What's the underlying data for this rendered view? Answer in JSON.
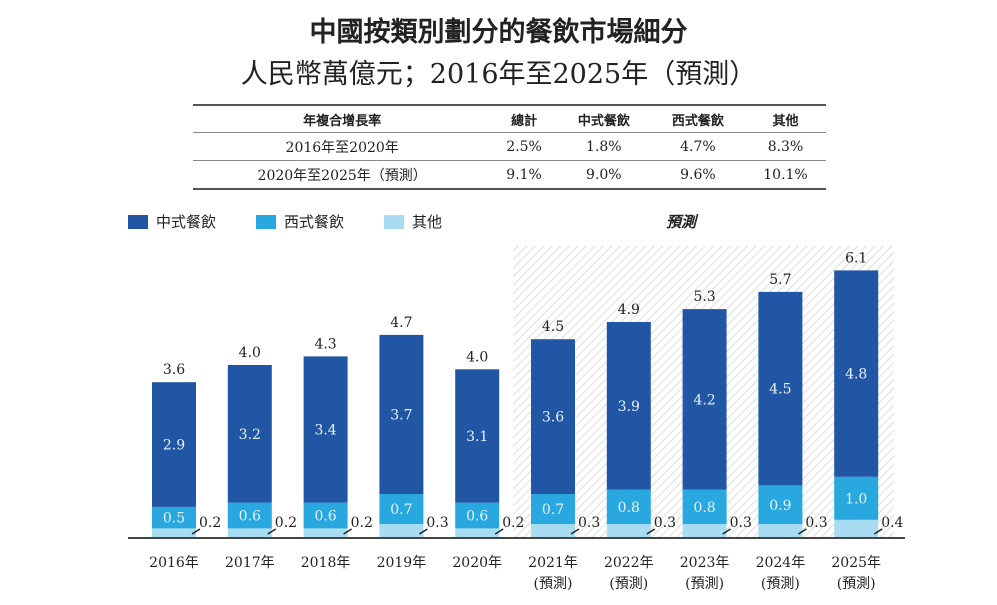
{
  "title": "中國按類別劃分的餐飲市場細分",
  "subtitle": "人民幣萬億元；2016年至2025年（預測）",
  "cagr_table": {
    "headers": [
      "年複合增長率",
      "總計",
      "中式餐飲",
      "西式餐飲",
      "其他"
    ],
    "rows": [
      [
        "2016年至2020年",
        "2.5%",
        "1.8%",
        "4.7%",
        "8.3%"
      ],
      [
        "2020年至2025年（預測）",
        "9.1%",
        "9.0%",
        "9.6%",
        "10.1%"
      ]
    ]
  },
  "legend": {
    "forecast_label": "預測"
  },
  "chart_data": {
    "type": "bar",
    "stacked": true,
    "categories": [
      "2016年",
      "2017年",
      "2018年",
      "2019年",
      "2020年",
      "2021年",
      "2022年",
      "2023年",
      "2024年",
      "2025年"
    ],
    "category_sublabels": [
      "",
      "",
      "",
      "",
      "",
      "(預測)",
      "(預測)",
      "(預測)",
      "(預測)",
      "(預測)"
    ],
    "series": [
      {
        "name": "中式餐飲",
        "color": "#2156a5",
        "values": [
          2.9,
          3.2,
          3.4,
          3.7,
          3.1,
          3.6,
          3.9,
          4.2,
          4.5,
          4.8
        ]
      },
      {
        "name": "西式餐飲",
        "color": "#29a8e0",
        "values": [
          0.5,
          0.6,
          0.6,
          0.7,
          0.6,
          0.7,
          0.8,
          0.8,
          0.9,
          1.0
        ]
      },
      {
        "name": "其他",
        "color": "#a8dcf2",
        "values": [
          0.2,
          0.2,
          0.2,
          0.3,
          0.2,
          0.3,
          0.3,
          0.3,
          0.3,
          0.4
        ]
      }
    ],
    "totals": [
      3.6,
      4.0,
      4.3,
      4.7,
      4.0,
      4.5,
      4.9,
      5.3,
      5.7,
      6.1
    ],
    "forecast_from": "2021年"
  }
}
